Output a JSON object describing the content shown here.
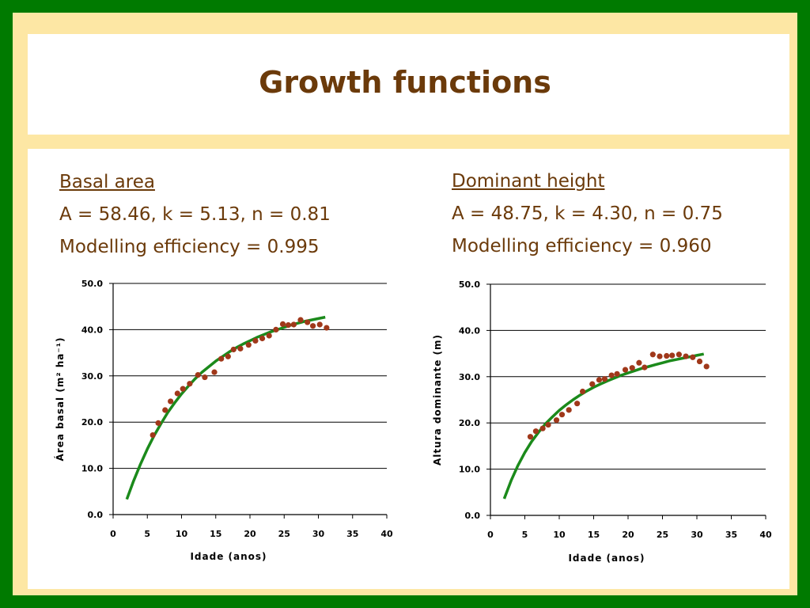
{
  "slide": {
    "title": "Growth functions",
    "colors": {
      "border": "#007a00",
      "panel": "#fde7a4",
      "text": "#6b3a0a",
      "curve": "#1b8a1b",
      "points": "#a0381a"
    }
  },
  "left": {
    "heading": "Basal area",
    "params": "A = 58.46, k = 5.13, n = 0.81",
    "efficiency": "Modelling efficiency = 0.995"
  },
  "right": {
    "heading": "Dominant height",
    "params": "A = 48.75, k = 4.30, n = 0.75",
    "efficiency": "Modelling efficiency = 0.960"
  },
  "chart_data": [
    {
      "type": "scatter",
      "xlabel": "Idade (anos)",
      "ylabel": "Área basal (m² ha⁻¹)",
      "xlim": [
        0,
        40
      ],
      "ylim": [
        0,
        50
      ],
      "xticks": [
        "0",
        "5",
        "10",
        "15",
        "20",
        "25",
        "30",
        "35",
        "40"
      ],
      "yticks": [
        "0.0",
        "10.0",
        "20.0",
        "30.0",
        "40.0",
        "50.0"
      ],
      "grid": "horizontal",
      "observed": {
        "x": [
          5.8,
          6.6,
          7.6,
          8.4,
          9.4,
          10.2,
          11.2,
          12.4,
          13.4,
          14.8,
          15.8,
          16.8,
          17.6,
          18.6,
          19.8,
          20.8,
          21.8,
          22.8,
          23.8,
          24.8,
          25.6,
          26.4,
          27.4,
          28.4,
          29.2,
          30.2,
          31.2
        ],
        "y": [
          17.2,
          19.8,
          22.6,
          24.5,
          26.2,
          27.2,
          28.3,
          30.2,
          29.7,
          30.8,
          33.7,
          34.2,
          35.7,
          35.9,
          36.7,
          37.6,
          38.1,
          38.7,
          40.0,
          41.2,
          41.0,
          41.1,
          42.1,
          41.6,
          40.8,
          41.1,
          40.4
        ]
      },
      "fitted": {
        "x": [
          2,
          3,
          4,
          5,
          6,
          7,
          8,
          9,
          10,
          11,
          12,
          13,
          14,
          15,
          16,
          17,
          18,
          19,
          20,
          21,
          22,
          23,
          24,
          25,
          26,
          27,
          28,
          29,
          30,
          31
        ],
        "y": [
          3.3,
          7.3,
          10.9,
          14.2,
          17.1,
          19.7,
          22.1,
          24.2,
          26.1,
          27.8,
          29.4,
          30.8,
          32.0,
          33.2,
          34.2,
          35.2,
          36.1,
          36.9,
          37.6,
          38.3,
          38.9,
          39.5,
          40.0,
          40.5,
          41.0,
          41.4,
          41.8,
          42.1,
          42.4,
          42.7
        ]
      }
    },
    {
      "type": "scatter",
      "xlabel": "Idade (anos)",
      "ylabel": "Altura dominante (m)",
      "xlim": [
        0,
        40
      ],
      "ylim": [
        0,
        50
      ],
      "xticks": [
        "0",
        "5",
        "10",
        "15",
        "20",
        "25",
        "30",
        "35",
        "40"
      ],
      "yticks": [
        "0.0",
        "10.0",
        "20.0",
        "30.0",
        "40.0",
        "50.0"
      ],
      "grid": "horizontal",
      "observed": {
        "x": [
          5.8,
          6.6,
          7.6,
          8.4,
          9.6,
          10.4,
          11.4,
          12.6,
          13.4,
          14.8,
          15.8,
          16.6,
          17.6,
          18.4,
          19.6,
          20.6,
          21.6,
          22.4,
          23.6,
          24.6,
          25.6,
          26.4,
          27.4,
          28.4,
          29.4,
          30.4,
          31.4
        ],
        "y": [
          17.0,
          18.2,
          18.8,
          19.6,
          20.6,
          21.8,
          22.8,
          24.2,
          26.8,
          28.4,
          29.3,
          29.5,
          30.3,
          30.6,
          31.5,
          31.9,
          33.0,
          32.0,
          34.8,
          34.4,
          34.5,
          34.6,
          34.8,
          34.4,
          34.2,
          33.3,
          32.2
        ]
      },
      "fitted": {
        "x": [
          2,
          3,
          4,
          5,
          6,
          7,
          8,
          9,
          10,
          11,
          12,
          13,
          14,
          15,
          16,
          17,
          18,
          19,
          20,
          21,
          22,
          23,
          24,
          25,
          26,
          27,
          28,
          29,
          30,
          31
        ],
        "y": [
          3.6,
          7.5,
          10.8,
          13.6,
          16.0,
          18.0,
          19.8,
          21.3,
          22.7,
          23.9,
          25.0,
          26.0,
          26.9,
          27.7,
          28.4,
          29.1,
          29.7,
          30.3,
          30.8,
          31.3,
          31.8,
          32.2,
          32.6,
          33.0,
          33.4,
          33.7,
          34.0,
          34.3,
          34.6,
          34.9
        ]
      }
    }
  ]
}
